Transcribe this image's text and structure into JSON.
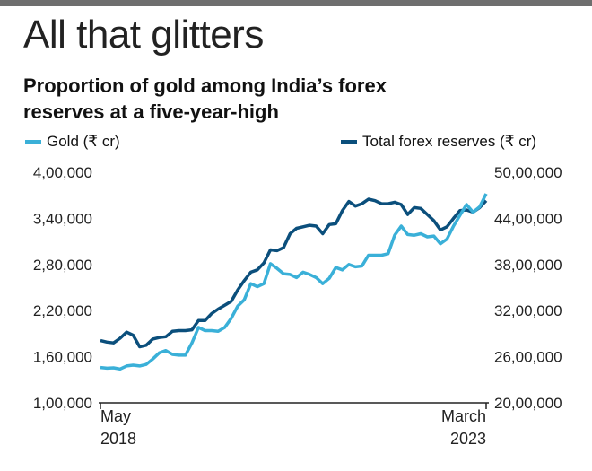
{
  "header": {
    "headline": "All that glitters",
    "subtitle": "Proportion of gold among India’s forex reserves at a five-year-high"
  },
  "colors": {
    "gold": "#3ab0d8",
    "total": "#0b4f7c",
    "top_rule": "#6e6e6e",
    "axis": "#222222"
  },
  "chart_data": {
    "type": "line",
    "legend": [
      "Gold (₹ cr)",
      "Total forex reserves (₹ cr)"
    ],
    "x_start_label": [
      "May",
      "2018"
    ],
    "x_end_label": [
      "March",
      "2023"
    ],
    "left_axis": {
      "ticks": [
        100000,
        160000,
        220000,
        280000,
        340000,
        400000
      ],
      "tick_labels": [
        "1,00,000",
        "1,60,000",
        "2,20,000",
        "2,80,000",
        "3,40,000",
        "4,00,000"
      ],
      "ylim": [
        100000,
        400000
      ]
    },
    "right_axis": {
      "ticks": [
        2000000,
        2600000,
        3200000,
        3800000,
        4400000,
        5000000
      ],
      "tick_labels": [
        "20,00,000",
        "26,00,000",
        "32,00,000",
        "38,00,000",
        "44,00,000",
        "50,00,000"
      ],
      "ylim": [
        2000000,
        5000000
      ]
    },
    "series": [
      {
        "name": "Gold (₹ cr)",
        "axis": "left",
        "values": [
          146000,
          145000,
          145500,
          144000,
          148000,
          149000,
          148000,
          150000,
          157000,
          165000,
          168000,
          163000,
          162000,
          162000,
          178000,
          198000,
          194000,
          194000,
          193000,
          198000,
          210000,
          226000,
          234000,
          255000,
          251000,
          255000,
          281000,
          275000,
          268000,
          267000,
          263000,
          270000,
          267000,
          263000,
          255000,
          262000,
          276000,
          273000,
          280000,
          277000,
          278000,
          292000,
          292000,
          292000,
          294000,
          318000,
          330000,
          319000,
          318000,
          320000,
          316000,
          317000,
          307000,
          313000,
          330000,
          344000,
          358000,
          348000,
          355000,
          372000
        ]
      },
      {
        "name": "Total forex reserves (₹ cr)",
        "axis": "right",
        "values": [
          2810000,
          2790000,
          2780000,
          2840000,
          2920000,
          2880000,
          2730000,
          2750000,
          2830000,
          2850000,
          2860000,
          2930000,
          2940000,
          2940000,
          2950000,
          3070000,
          3070000,
          3160000,
          3220000,
          3270000,
          3320000,
          3470000,
          3590000,
          3700000,
          3730000,
          3820000,
          3990000,
          3980000,
          4020000,
          4200000,
          4270000,
          4290000,
          4310000,
          4300000,
          4200000,
          4320000,
          4330000,
          4500000,
          4620000,
          4560000,
          4590000,
          4650000,
          4630000,
          4590000,
          4590000,
          4610000,
          4580000,
          4450000,
          4540000,
          4530000,
          4450000,
          4370000,
          4250000,
          4290000,
          4400000,
          4500000,
          4510000,
          4480000,
          4540000,
          4630000
        ]
      }
    ]
  }
}
